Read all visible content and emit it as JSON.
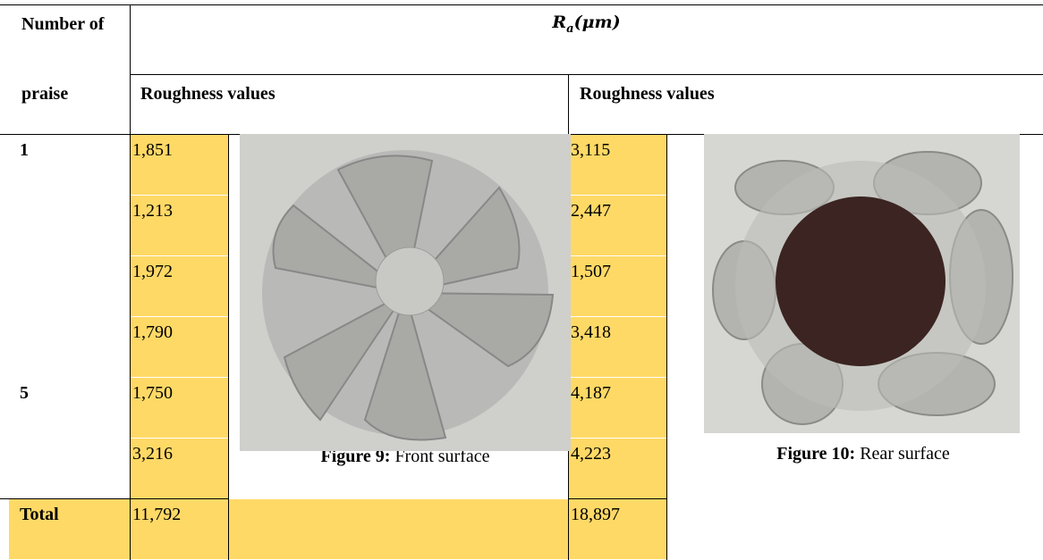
{
  "table": {
    "header": {
      "first_column": [
        "Number of",
        "praise"
      ],
      "measure": {
        "symbol": "R",
        "subscript": "a",
        "unit": "(μm)"
      },
      "groups": [
        "Roughness values",
        "Roughness values"
      ]
    },
    "rows": [
      [
        "1",
        "1,851",
        "3,115"
      ],
      [
        "",
        "1,213",
        "2,447"
      ],
      [
        "",
        "1,972",
        "1,507"
      ],
      [
        "",
        "1,790",
        "3,418"
      ],
      [
        "5",
        "1,750",
        "4,187"
      ],
      [
        "",
        "3,216",
        "4,223"
      ],
      [
        "Total",
        "11,792",
        "18,897"
      ]
    ]
  },
  "figures": [
    {
      "label": "Figure 9:",
      "caption": "Front surface"
    },
    {
      "label": "Figure 10:",
      "caption": "Rear surface"
    }
  ]
}
